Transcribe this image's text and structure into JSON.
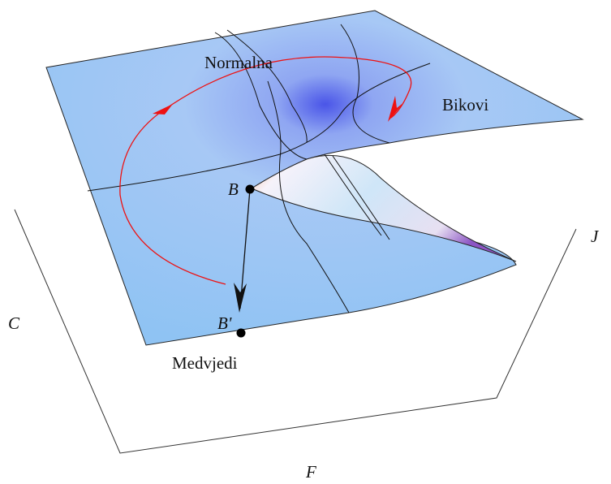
{
  "regions": {
    "top": "Normalna",
    "right": "Bikovi",
    "bottom": "Medvjedi"
  },
  "points": {
    "start": "B",
    "end": "B'"
  },
  "axes": {
    "left": "C",
    "right": "J",
    "bottom": "F"
  }
}
